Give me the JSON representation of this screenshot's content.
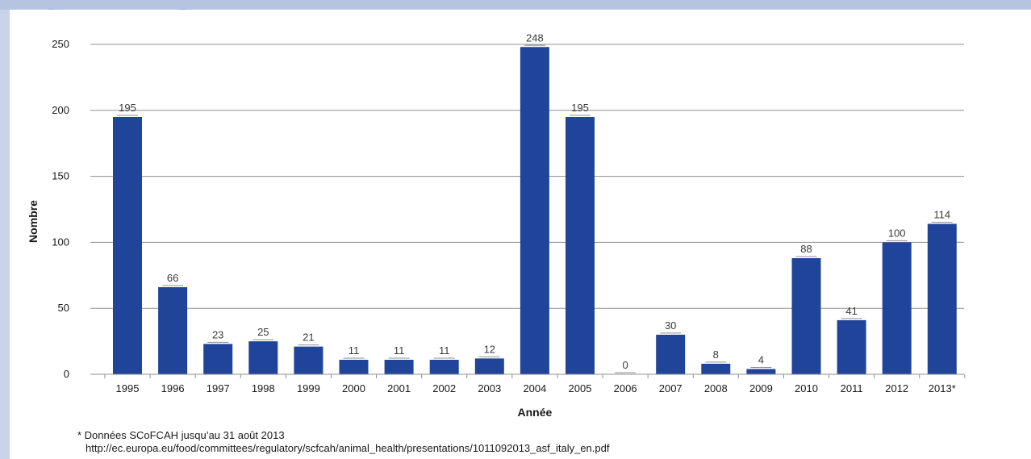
{
  "chart_data": {
    "type": "bar",
    "title": "",
    "xlabel": "Année",
    "ylabel": "Nombre",
    "ylim": [
      0,
      250
    ],
    "yticks": [
      0,
      50,
      100,
      150,
      200,
      250
    ],
    "grid": true,
    "categories": [
      "1995",
      "1996",
      "1997",
      "1998",
      "1999",
      "2000",
      "2001",
      "2002",
      "2003",
      "2004",
      "2005",
      "2006",
      "2007",
      "2008",
      "2009",
      "2010",
      "2011",
      "2012",
      "2013*"
    ],
    "values": [
      195,
      66,
      23,
      25,
      21,
      11,
      11,
      11,
      12,
      248,
      195,
      0,
      30,
      8,
      4,
      88,
      41,
      100,
      114
    ],
    "bar_color": "#20449a",
    "grid_color": "#8f8f8f"
  },
  "footnote": {
    "line1": "* Données SCoFCAH jusqu’au 31 août 2013",
    "line2": "http://ec.europa.eu/food/committees/regulatory/scfcah/animal_health/presentations/1011092013_asf_italy_en.pdf"
  },
  "colors": {
    "frame": "#c9d4ea",
    "panel": "#ffffff"
  }
}
